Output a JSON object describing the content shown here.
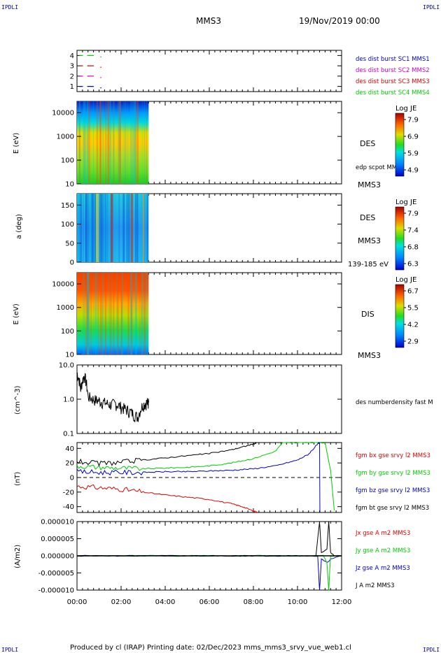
{
  "header": {
    "corner_tl": "IPDLI",
    "corner_tr": "IPDLI",
    "corner_bl": "IPDLI",
    "corner_br": "IPDLI",
    "spacecraft": "MMS3",
    "date_time": "19/Nov/2019 00:00"
  },
  "footer": {
    "text": "Produced by cl (IRAP)   Printing date: 02/Dec/2023   mms_mms3_srvy_vue_web1.cl"
  },
  "colors": {
    "cyan_blue": "#0000cc",
    "magenta": "#cc00cc",
    "red": "#dd0000",
    "green": "#00cc00",
    "black": "#000000"
  },
  "chart_data": [
    {
      "type": "line",
      "panel": "burst-availability",
      "yticks": [
        "1",
        "2",
        "3",
        "4"
      ],
      "ylim": [
        0.5,
        4.5
      ],
      "legend": [
        {
          "label": "des dist burst SC1 MMS1",
          "color": "#0000cc"
        },
        {
          "label": "des dist burst SC2 MMS2",
          "color": "#cc00cc"
        },
        {
          "label": "des dist burst SC3 MMS3",
          "color": "#dd0000"
        },
        {
          "label": "des dist burst SC4 MMS4",
          "color": "#00cc00"
        }
      ],
      "series": [
        {
          "values": [
            {
              "y": 4,
              "x": [
                "00:01",
                "00:42"
              ]
            }
          ]
        },
        {
          "values": [
            {
              "y": 3,
              "x": [
                "00:01",
                "00:42"
              ]
            }
          ]
        },
        {
          "values": [
            {
              "y": 2,
              "x": [
                "00:01",
                "00:42"
              ]
            }
          ]
        },
        {
          "values": [
            {
              "y": 1,
              "x": [
                "00:01",
                "00:42"
              ]
            }
          ]
        }
      ]
    },
    {
      "type": "heatmap",
      "panel": "des-energy",
      "ylabel": "E (eV)",
      "yticks": [
        "10",
        "100",
        "1000",
        "10000"
      ],
      "ylim": [
        10,
        30000
      ],
      "scale": "log",
      "data_extent_x": [
        "00:00",
        "03:15"
      ],
      "label": "DES",
      "annotation": "edp scpot MMS3",
      "sc_label": "MMS3",
      "colorbar": {
        "title": "Log JE",
        "ticks": [
          "7.9",
          "6.9",
          "5.9",
          "4.9"
        ]
      }
    },
    {
      "type": "heatmap",
      "panel": "des-pitch",
      "ylabel": "a (deg)",
      "yticks": [
        "0",
        "50",
        "100",
        "150"
      ],
      "ylim": [
        0,
        180
      ],
      "data_extent_x": [
        "00:00",
        "03:15"
      ],
      "label": "DES",
      "sc_label": "MMS3",
      "energy_label": "139-185 eV",
      "colorbar": {
        "title": "Log JE",
        "ticks": [
          "7.9",
          "7.4",
          "6.8",
          "6.3"
        ]
      }
    },
    {
      "type": "heatmap",
      "panel": "dis-energy",
      "ylabel": "E (eV)",
      "yticks": [
        "10",
        "100",
        "1000",
        "10000"
      ],
      "ylim": [
        10,
        30000
      ],
      "scale": "log",
      "data_extent_x": [
        "00:00",
        "03:15"
      ],
      "label": "DIS",
      "sc_label": "MMS3",
      "colorbar": {
        "title": "Log JE",
        "ticks": [
          "6.7",
          "5.5",
          "4.2",
          "2.9"
        ]
      }
    },
    {
      "type": "line",
      "panel": "density",
      "ylabel": "(cm^-3)",
      "yticks": [
        "0.1",
        "1.0",
        "10.0"
      ],
      "ylim": [
        0.1,
        10
      ],
      "scale": "log",
      "legend": [
        {
          "label": "des numberdensity fast M",
          "color": "#000000"
        }
      ],
      "series": [
        {
          "x": [
            "00:00",
            "00:10",
            "00:20",
            "00:30",
            "00:45",
            "01:00",
            "01:15",
            "01:30",
            "01:45",
            "02:00",
            "02:15",
            "02:30",
            "02:45",
            "03:00",
            "03:10",
            "03:15"
          ],
          "values": [
            6.0,
            2.0,
            5.0,
            1.2,
            1.0,
            0.9,
            0.8,
            0.7,
            0.75,
            0.6,
            0.5,
            0.4,
            0.3,
            0.7,
            0.8,
            0.8
          ]
        }
      ]
    },
    {
      "type": "line",
      "panel": "magnetic-field",
      "ylabel": "(nT)",
      "yticks": [
        "-40",
        "-20",
        "0",
        "20",
        "40"
      ],
      "ylim": [
        -48,
        48
      ],
      "legend": [
        {
          "label": "fgm bx gse srvy l2 MMS3",
          "color": "#dd0000"
        },
        {
          "label": "fgm by gse srvy l2 MMS3",
          "color": "#00cc00"
        },
        {
          "label": "fgm bz gse srvy l2 MMS3",
          "color": "#0000cc"
        },
        {
          "label": "fgm bt gse srvy l2 MMS3",
          "color": "#000000"
        }
      ],
      "series": [
        {
          "name": "bx",
          "x": [
            "00:00",
            "01:00",
            "02:00",
            "03:00",
            "04:00",
            "05:00",
            "06:00",
            "07:00",
            "07:30",
            "08:00",
            "08:10"
          ],
          "values": [
            -12,
            -14,
            -16,
            -20,
            -24,
            -27,
            -30,
            -36,
            -40,
            -46,
            -48
          ]
        },
        {
          "name": "by",
          "x": [
            "00:00",
            "01:00",
            "02:00",
            "03:00",
            "04:00",
            "05:00",
            "06:00",
            "07:00",
            "08:00",
            "09:00",
            "09:20",
            "10:30",
            "11:15",
            "11:30",
            "11:40"
          ],
          "values": [
            16,
            14,
            13,
            12,
            13,
            14,
            16,
            20,
            26,
            36,
            48,
            48,
            48,
            10,
            -45
          ]
        },
        {
          "name": "bz",
          "x": [
            "00:00",
            "01:00",
            "02:00",
            "03:00",
            "04:00",
            "05:00",
            "06:00",
            "07:00",
            "08:00",
            "09:00",
            "10:00",
            "10:30",
            "10:55",
            "11:00",
            "11:01"
          ],
          "values": [
            8,
            7,
            7,
            7,
            8,
            8,
            9,
            10,
            12,
            16,
            24,
            32,
            46,
            48,
            -48
          ]
        },
        {
          "name": "bt",
          "x": [
            "00:00",
            "01:00",
            "02:00",
            "03:00",
            "04:00",
            "05:00",
            "06:00",
            "07:00",
            "07:30",
            "08:00",
            "08:10"
          ],
          "values": [
            22,
            19,
            21,
            24,
            27,
            30,
            33,
            38,
            42,
            46,
            48
          ]
        }
      ]
    },
    {
      "type": "line",
      "panel": "current-density",
      "ylabel": "(A/m2)",
      "yticks": [
        "0.000010",
        "0.000005",
        "0.000000",
        "-0.000005",
        "-0.000010"
      ],
      "ylim": [
        -1e-05,
        1e-05
      ],
      "legend": [
        {
          "label": "Jx gse A m2 MMS3",
          "color": "#dd0000"
        },
        {
          "label": "Jy gse A m2 MMS3",
          "color": "#00cc00"
        },
        {
          "label": "Jz gse A m2 MMS3",
          "color": "#0000cc"
        },
        {
          "label": "J A m2 MMS3",
          "color": "#000000"
        }
      ],
      "series": [
        {
          "name": "J",
          "x": [
            "00:00",
            "10:50",
            "11:00",
            "11:05",
            "11:20",
            "11:25",
            "11:30",
            "11:40",
            "12:00"
          ],
          "values": [
            0,
            0,
            1e-05,
            1e-06,
            2e-06,
            1e-05,
            1e-06,
            0,
            0
          ]
        },
        {
          "name": "Jz",
          "x": [
            "00:00",
            "10:55",
            "11:00",
            "11:05",
            "11:20",
            "11:30",
            "12:00"
          ],
          "values": [
            0,
            0,
            -1e-05,
            -1e-06,
            -2e-06,
            -1e-06,
            0
          ]
        },
        {
          "name": "Jy",
          "x": [
            "00:00",
            "11:10",
            "11:20",
            "11:25",
            "11:30",
            "12:00"
          ],
          "values": [
            0,
            0,
            -2e-06,
            -1e-05,
            0,
            0
          ]
        }
      ]
    }
  ],
  "xaxis": {
    "ticks": [
      "00:00",
      "02:00",
      "04:00",
      "06:00",
      "08:00",
      "10:00",
      "12:00"
    ],
    "range": [
      "00:00",
      "12:00"
    ]
  }
}
